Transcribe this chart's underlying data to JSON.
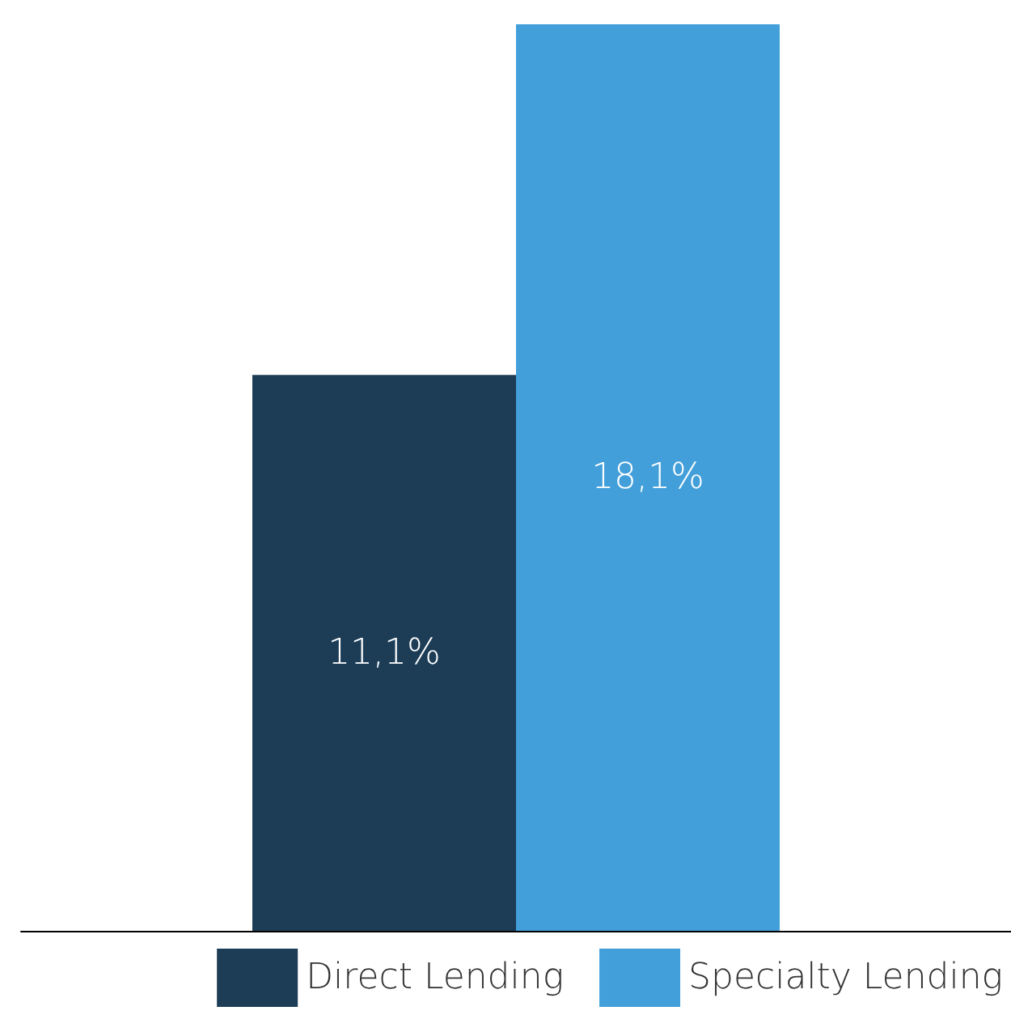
{
  "chart_data": {
    "type": "bar",
    "categories": [
      null
    ],
    "legend": "bottom right",
    "grid": false,
    "series": [
      {
        "name": "Direct Lending",
        "color": "#1d3d57",
        "values": [
          11.1
        ],
        "value_labels": [
          "11,1%"
        ]
      },
      {
        "name": "Specialty Lending",
        "color": "#439fda",
        "values": [
          18.1
        ],
        "value_labels": [
          "18,1%"
        ]
      }
    ]
  }
}
